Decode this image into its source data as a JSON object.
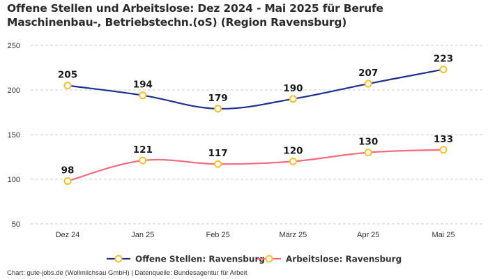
{
  "title": "Offene Stellen und Arbeitslose: Dez 2024 - Mai 2025 für Berufe Maschinenbau-, Betriebstechn.(oS) (Region Ravensburg)",
  "footer": "Chart: gute-jobs.de (Wollmilchsau GmbH) | Datenquelle: Bundesagentur für Arbeit",
  "chart_data": {
    "type": "line",
    "title": "Offene Stellen und Arbeitslose: Dez 2024 - Mai 2025 für Berufe Maschinenbau-, Betriebstechn.(oS) (Region Ravensburg)",
    "xlabel": "",
    "ylabel": "",
    "categories": [
      "Dez 24",
      "Jan 25",
      "Feb 25",
      "März 25",
      "Apr 25",
      "Mai 25"
    ],
    "ylim": [
      50,
      250
    ],
    "yticks": [
      50,
      100,
      150,
      200,
      250
    ],
    "grid": true,
    "legend_position": "bottom",
    "series": [
      {
        "name": "Offene Stellen: Ravensburg",
        "values": [
          205,
          194,
          179,
          190,
          207,
          223
        ],
        "color": "#1f2f8f",
        "marker_color": "#f5c02a"
      },
      {
        "name": "Arbeitslose: Ravensburg",
        "values": [
          98,
          121,
          117,
          120,
          130,
          133
        ],
        "color": "#f26b80",
        "marker_color": "#f5c02a"
      }
    ]
  }
}
